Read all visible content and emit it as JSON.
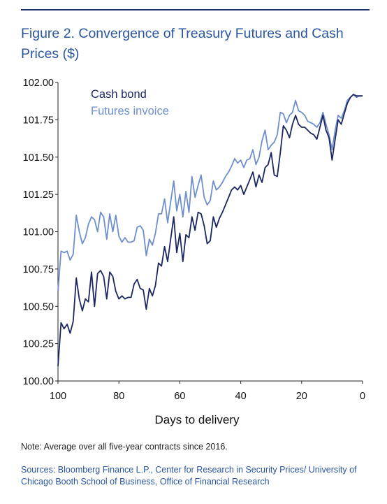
{
  "figure": {
    "title": "Figure 2. Convergence of Treasury Futures and Cash Prices ($)",
    "note": "Note: Average over all five-year contracts since 2016.",
    "sources": "Sources: Bloomberg Finance L.P., Center for Research in Security Prices/ University of Chicago Booth School of Business, Office of Financial Research"
  },
  "colors": {
    "cash_bond": "#1c2761",
    "futures_invoice": "#6e8fcc",
    "rule": "#1f2f6b"
  },
  "chart_data": {
    "type": "line",
    "xlabel": "Days to delivery",
    "ylabel": "",
    "xlim": [
      100,
      0
    ],
    "ylim": [
      100.0,
      102.0
    ],
    "x_ticks": [
      100,
      80,
      60,
      40,
      20,
      0
    ],
    "x_tick_labels": [
      "100",
      "80",
      "60",
      "40",
      "20",
      "0"
    ],
    "y_ticks": [
      100.0,
      100.25,
      100.5,
      100.75,
      101.0,
      101.25,
      101.5,
      101.75,
      102.0
    ],
    "y_tick_labels": [
      "100.00",
      "100.25",
      "100.50",
      "100.75",
      "101.00",
      "101.25",
      "101.50",
      "101.75",
      "102.00"
    ],
    "legend_position": "top-left",
    "grid": false,
    "x": [
      100,
      99,
      98,
      97,
      96,
      95,
      94,
      93,
      92,
      91,
      90,
      89,
      88,
      87,
      86,
      85,
      84,
      83,
      82,
      81,
      80,
      79,
      78,
      77,
      76,
      75,
      74,
      73,
      72,
      71,
      70,
      69,
      68,
      67,
      66,
      65,
      64,
      63,
      62,
      61,
      60,
      59,
      58,
      57,
      56,
      55,
      54,
      53,
      52,
      51,
      50,
      49,
      48,
      47,
      46,
      45,
      44,
      43,
      42,
      41,
      40,
      39,
      38,
      37,
      36,
      35,
      34,
      33,
      32,
      31,
      30,
      29,
      28,
      27,
      26,
      25,
      24,
      23,
      22,
      21,
      20,
      19,
      18,
      17,
      16,
      15,
      14,
      13,
      12,
      11,
      10,
      9,
      8,
      7,
      6,
      5,
      4,
      3,
      2,
      1,
      0
    ],
    "series": [
      {
        "name": "Cash bond",
        "values": [
          100.1,
          100.39,
          100.35,
          100.38,
          100.32,
          100.4,
          100.69,
          100.55,
          100.47,
          100.55,
          100.53,
          100.73,
          100.5,
          100.72,
          100.74,
          100.7,
          100.55,
          100.73,
          100.7,
          100.6,
          100.55,
          100.57,
          100.55,
          100.56,
          100.56,
          100.65,
          100.68,
          100.62,
          100.61,
          100.48,
          100.62,
          100.57,
          100.64,
          100.79,
          100.77,
          100.9,
          100.8,
          100.95,
          101.1,
          100.86,
          100.99,
          100.8,
          100.98,
          100.96,
          101.1,
          101.01,
          101.13,
          101.12,
          101.04,
          100.92,
          100.94,
          101.1,
          101.03,
          101.09,
          101.13,
          101.18,
          101.23,
          101.28,
          101.3,
          101.28,
          101.31,
          101.25,
          101.3,
          101.35,
          101.4,
          101.3,
          101.38,
          101.33,
          101.43,
          101.45,
          101.53,
          101.38,
          101.37,
          101.53,
          101.71,
          101.68,
          101.63,
          101.72,
          101.78,
          101.72,
          101.7,
          101.7,
          101.68,
          101.66,
          101.65,
          101.62,
          101.7,
          101.78,
          101.68,
          101.63,
          101.48,
          101.62,
          101.75,
          101.72,
          101.79,
          101.86,
          101.9,
          101.92,
          101.91,
          101.91,
          101.91
        ]
      },
      {
        "name": "Futures invoice",
        "values": [
          100.6,
          100.87,
          100.86,
          100.87,
          100.81,
          100.85,
          101.11,
          101.0,
          100.92,
          100.96,
          101.05,
          101.1,
          101.08,
          101.0,
          101.13,
          101.1,
          100.95,
          101.12,
          101.0,
          101.11,
          100.97,
          100.93,
          100.96,
          100.93,
          100.93,
          100.94,
          101.03,
          101.04,
          101.01,
          100.84,
          100.95,
          100.91,
          100.99,
          101.12,
          101.12,
          101.22,
          101.06,
          101.2,
          101.34,
          101.14,
          101.25,
          101.1,
          101.27,
          101.13,
          101.37,
          101.23,
          101.31,
          101.38,
          101.23,
          101.18,
          101.21,
          101.34,
          101.28,
          101.3,
          101.33,
          101.37,
          101.4,
          101.44,
          101.49,
          101.46,
          101.48,
          101.43,
          101.48,
          101.49,
          101.55,
          101.45,
          101.5,
          101.61,
          101.68,
          101.55,
          101.58,
          101.6,
          101.65,
          101.8,
          101.79,
          101.73,
          101.78,
          101.8,
          101.88,
          101.81,
          101.8,
          101.78,
          101.74,
          101.73,
          101.72,
          101.7,
          101.73,
          101.8,
          101.72,
          101.65,
          101.55,
          101.68,
          101.78,
          101.76,
          101.81,
          101.88,
          101.9,
          101.92,
          101.9,
          101.91,
          101.91
        ]
      }
    ]
  }
}
